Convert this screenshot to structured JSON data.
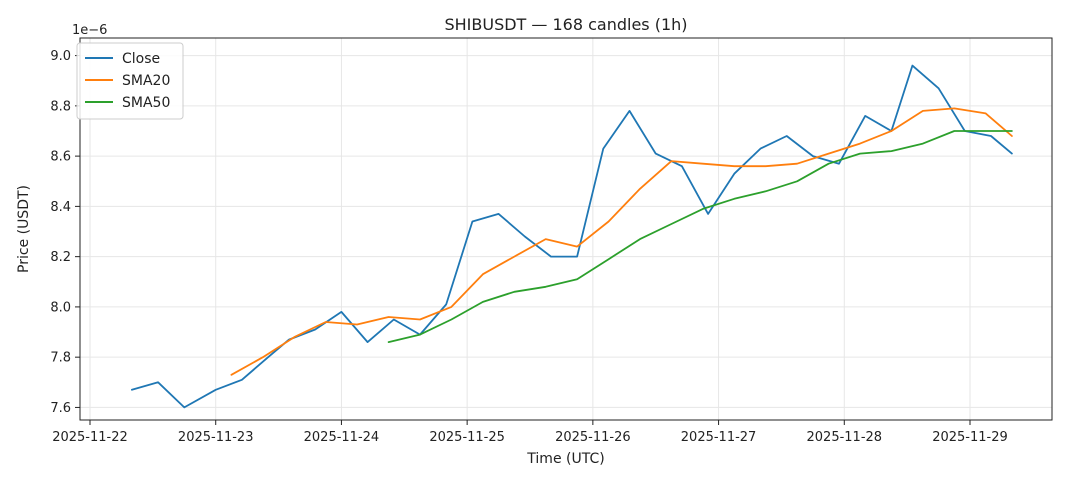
{
  "chart_data": {
    "type": "line",
    "title": "SHIBUSDT — 168 candles (1h)",
    "xlabel": "Time (UTC)",
    "ylabel": "Price (USDT)",
    "y_offset_label": "1e−6",
    "ylim": [
      7.55,
      9.07
    ],
    "y_ticks": [
      "7.6",
      "7.8",
      "8.0",
      "8.2",
      "8.4",
      "8.6",
      "8.8",
      "9.0"
    ],
    "x_ticks": [
      "2025-11-22",
      "2025-11-23",
      "2025-11-24",
      "2025-11-25",
      "2025-11-26",
      "2025-11-27",
      "2025-11-28",
      "2025-11-29"
    ],
    "grid": true,
    "legend_position": "top-left",
    "colors": {
      "Close": "#1f77b4",
      "SMA20": "#ff7f0e",
      "SMA50": "#2ca02c"
    },
    "series": [
      {
        "name": "Close",
        "x": [
          "2025-11-22 08:00",
          "2025-11-22 13:00",
          "2025-11-22 18:00",
          "2025-11-23 00:00",
          "2025-11-23 05:00",
          "2025-11-23 10:00",
          "2025-11-23 14:00",
          "2025-11-23 19:00",
          "2025-11-24 00:00",
          "2025-11-24 05:00",
          "2025-11-24 10:00",
          "2025-11-24 15:00",
          "2025-11-24 20:00",
          "2025-11-25 01:00",
          "2025-11-25 06:00",
          "2025-11-25 11:00",
          "2025-11-25 16:00",
          "2025-11-25 21:00",
          "2025-11-26 02:00",
          "2025-11-26 07:00",
          "2025-11-26 12:00",
          "2025-11-26 17:00",
          "2025-11-26 22:00",
          "2025-11-27 03:00",
          "2025-11-27 08:00",
          "2025-11-27 13:00",
          "2025-11-27 18:00",
          "2025-11-27 23:00",
          "2025-11-28 04:00",
          "2025-11-28 09:00",
          "2025-11-28 13:00",
          "2025-11-28 18:00",
          "2025-11-28 23:00",
          "2025-11-29 04:00",
          "2025-11-29 08:00"
        ],
        "values": [
          7.67,
          7.7,
          7.6,
          7.67,
          7.71,
          7.8,
          7.87,
          7.91,
          7.98,
          7.86,
          7.95,
          7.89,
          8.01,
          8.34,
          8.37,
          8.28,
          8.2,
          8.2,
          8.63,
          8.78,
          8.61,
          8.56,
          8.37,
          8.53,
          8.63,
          8.68,
          8.6,
          8.57,
          8.76,
          8.7,
          8.96,
          8.87,
          8.7,
          8.68,
          8.61
        ]
      },
      {
        "name": "SMA20",
        "x": [
          "2025-11-23 03:00",
          "2025-11-23 09:00",
          "2025-11-23 15:00",
          "2025-11-23 21:00",
          "2025-11-24 03:00",
          "2025-11-24 09:00",
          "2025-11-24 15:00",
          "2025-11-24 21:00",
          "2025-11-25 03:00",
          "2025-11-25 09:00",
          "2025-11-25 15:00",
          "2025-11-25 21:00",
          "2025-11-26 03:00",
          "2025-11-26 09:00",
          "2025-11-26 15:00",
          "2025-11-26 21:00",
          "2025-11-27 03:00",
          "2025-11-27 09:00",
          "2025-11-27 15:00",
          "2025-11-27 21:00",
          "2025-11-28 03:00",
          "2025-11-28 09:00",
          "2025-11-28 15:00",
          "2025-11-28 21:00",
          "2025-11-29 03:00",
          "2025-11-29 08:00"
        ],
        "values": [
          7.73,
          7.8,
          7.88,
          7.94,
          7.93,
          7.96,
          7.95,
          8.0,
          8.13,
          8.2,
          8.27,
          8.24,
          8.34,
          8.47,
          8.58,
          8.57,
          8.56,
          8.56,
          8.57,
          8.61,
          8.65,
          8.7,
          8.78,
          8.79,
          8.77,
          8.68
        ]
      },
      {
        "name": "SMA50",
        "x": [
          "2025-11-24 09:00",
          "2025-11-24 15:00",
          "2025-11-24 21:00",
          "2025-11-25 03:00",
          "2025-11-25 09:00",
          "2025-11-25 15:00",
          "2025-11-25 21:00",
          "2025-11-26 03:00",
          "2025-11-26 09:00",
          "2025-11-26 15:00",
          "2025-11-26 21:00",
          "2025-11-27 03:00",
          "2025-11-27 09:00",
          "2025-11-27 15:00",
          "2025-11-27 21:00",
          "2025-11-28 03:00",
          "2025-11-28 09:00",
          "2025-11-28 15:00",
          "2025-11-28 21:00",
          "2025-11-29 03:00",
          "2025-11-29 08:00"
        ],
        "values": [
          7.86,
          7.89,
          7.95,
          8.02,
          8.06,
          8.08,
          8.11,
          8.19,
          8.27,
          8.33,
          8.39,
          8.43,
          8.46,
          8.5,
          8.57,
          8.61,
          8.62,
          8.65,
          8.7,
          8.7,
          8.7
        ]
      }
    ]
  }
}
